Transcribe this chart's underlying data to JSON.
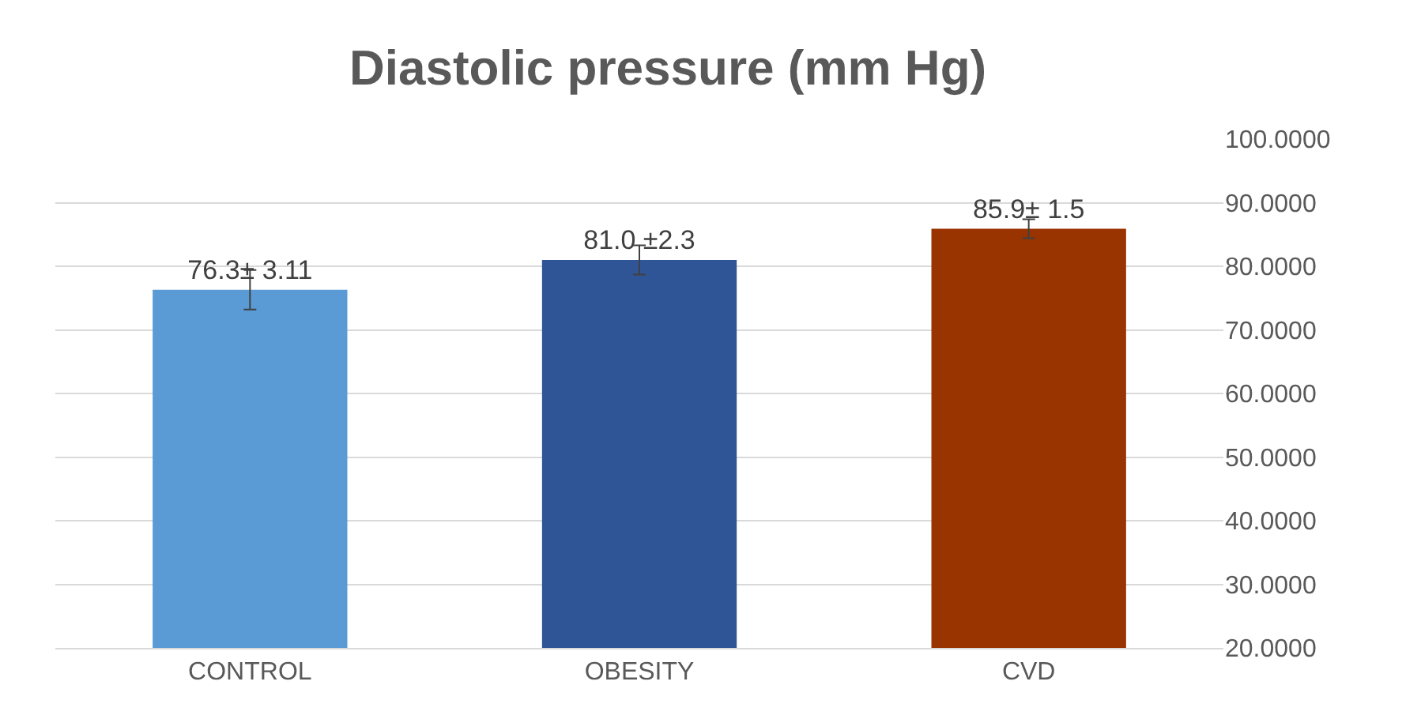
{
  "chart_data": {
    "type": "bar",
    "title": "Diastolic pressure (mm Hg)",
    "categories": [
      "CONTROL",
      "OBESITY",
      "CVD"
    ],
    "values": [
      76.3,
      81.0,
      85.9
    ],
    "errors": [
      3.11,
      2.3,
      1.5
    ],
    "value_labels": [
      "76.3± 3.11",
      "81.0 ±2.3",
      "85.9± 1.5"
    ],
    "colors": [
      "#5b9bd5",
      "#2f5597",
      "#993300"
    ],
    "ylim": [
      20,
      100
    ],
    "yticks": [
      {
        "value": 20,
        "label": "20.0000"
      },
      {
        "value": 30,
        "label": "30.0000"
      },
      {
        "value": 40,
        "label": "40.0000"
      },
      {
        "value": 50,
        "label": "50.0000"
      },
      {
        "value": 60,
        "label": "60.0000"
      },
      {
        "value": 70,
        "label": "70.0000"
      },
      {
        "value": 80,
        "label": "80.0000"
      },
      {
        "value": 90,
        "label": "90.0000"
      },
      {
        "value": 100,
        "label": "100.0000"
      }
    ],
    "grid": "y"
  }
}
